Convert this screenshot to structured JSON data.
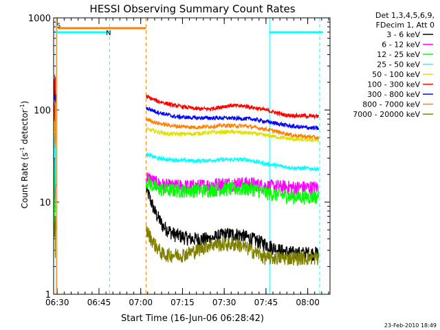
{
  "chart_data": {
    "type": "line",
    "title": "HESSI Observing Summary Count Rates",
    "xlabel": "Start Time (16-Jun-06 06:28:42)",
    "ylabel_main": "Count Rate (s",
    "ylabel_sup1": "-1",
    "ylabel_mid": " detector",
    "ylabel_sup2": "-1",
    "ylabel_end": ")",
    "y_scale": "log",
    "ylim": [
      1,
      1000
    ],
    "y_ticks": [
      "1",
      "10",
      "100",
      "1000"
    ],
    "x_ticks": [
      "06:30",
      "06:45",
      "07:00",
      "07:15",
      "07:30",
      "07:45",
      "08:00"
    ],
    "legend_header": [
      "Det 1,3,4,5,6,9,",
      "FDecim 1, Att 0"
    ],
    "timestamp": "23-Feb-2010 18:49",
    "flags": [
      {
        "label": "S",
        "color": "#ff8000"
      },
      {
        "label": "N",
        "color": "#00ffff"
      }
    ],
    "series": [
      {
        "name": "3 - 6 keV",
        "color": "#000000",
        "points": [
          [
            "07:02",
            14
          ],
          [
            "07:05",
            8
          ],
          [
            "07:08",
            5.5
          ],
          [
            "07:12",
            4.5
          ],
          [
            "07:18",
            4
          ],
          [
            "07:25",
            4
          ],
          [
            "07:30",
            4.5
          ],
          [
            "07:35",
            4.5
          ],
          [
            "07:40",
            4
          ],
          [
            "07:45",
            3.5
          ],
          [
            "07:50",
            3
          ],
          [
            "07:55",
            2.8
          ],
          [
            "08:00",
            2.8
          ],
          [
            "08:04",
            2.8
          ]
        ]
      },
      {
        "name": "6 - 12 keV",
        "color": "#ff00ff",
        "points": [
          [
            "07:02",
            19
          ],
          [
            "07:06",
            16
          ],
          [
            "07:10",
            15
          ],
          [
            "07:20",
            15
          ],
          [
            "07:30",
            16
          ],
          [
            "07:40",
            16
          ],
          [
            "07:45",
            15
          ],
          [
            "07:55",
            14.5
          ],
          [
            "08:04",
            14.5
          ]
        ]
      },
      {
        "name": "12 - 25 keV",
        "color": "#00ff00",
        "points": [
          [
            "07:02",
            17
          ],
          [
            "07:06",
            14
          ],
          [
            "07:10",
            13.5
          ],
          [
            "07:20",
            13.5
          ],
          [
            "07:30",
            14
          ],
          [
            "07:40",
            14
          ],
          [
            "07:46",
            12.5
          ],
          [
            "07:55",
            11.5
          ],
          [
            "08:04",
            11.5
          ]
        ]
      },
      {
        "name": "25 - 50 keV",
        "color": "#00ffff",
        "points": [
          [
            "07:02",
            33
          ],
          [
            "07:06",
            30
          ],
          [
            "07:10",
            29
          ],
          [
            "07:20",
            28
          ],
          [
            "07:30",
            29
          ],
          [
            "07:38",
            29
          ],
          [
            "07:45",
            26
          ],
          [
            "07:55",
            23.5
          ],
          [
            "08:04",
            23
          ]
        ]
      },
      {
        "name": "50 - 100 keV",
        "color": "#e0e000",
        "points": [
          [
            "07:02",
            62
          ],
          [
            "07:06",
            58
          ],
          [
            "07:10",
            55
          ],
          [
            "07:18",
            55
          ],
          [
            "07:25",
            57
          ],
          [
            "07:32",
            58
          ],
          [
            "07:40",
            56
          ],
          [
            "07:45",
            53
          ],
          [
            "07:55",
            48
          ],
          [
            "08:04",
            47
          ]
        ]
      },
      {
        "name": "100 - 300 keV",
        "color": "#ff0000",
        "points": [
          [
            "07:02",
            140
          ],
          [
            "07:06",
            125
          ],
          [
            "07:12",
            112
          ],
          [
            "07:20",
            103
          ],
          [
            "07:25",
            103
          ],
          [
            "07:32",
            112
          ],
          [
            "07:38",
            110
          ],
          [
            "07:45",
            100
          ],
          [
            "07:52",
            88
          ],
          [
            "08:04",
            85
          ]
        ]
      },
      {
        "name": "300 - 800 keV",
        "color": "#0000ff",
        "points": [
          [
            "07:02",
            105
          ],
          [
            "07:06",
            95
          ],
          [
            "07:12",
            85
          ],
          [
            "07:20",
            82
          ],
          [
            "07:30",
            82
          ],
          [
            "07:40",
            80
          ],
          [
            "07:45",
            75
          ],
          [
            "07:55",
            66
          ],
          [
            "08:04",
            63
          ]
        ]
      },
      {
        "name": "800 - 7000 keV",
        "color": "#ff8000",
        "points": [
          [
            "07:02",
            80
          ],
          [
            "07:06",
            72
          ],
          [
            "07:12",
            67
          ],
          [
            "07:20",
            65
          ],
          [
            "07:30",
            68
          ],
          [
            "07:38",
            67
          ],
          [
            "07:45",
            62
          ],
          [
            "07:55",
            53
          ],
          [
            "08:04",
            50
          ]
        ]
      },
      {
        "name": "7000 - 20000 keV",
        "color": "#808000",
        "points": [
          [
            "07:02",
            5
          ],
          [
            "07:05",
            3.5
          ],
          [
            "07:08",
            2.7
          ],
          [
            "07:15",
            2.7
          ],
          [
            "07:20",
            3
          ],
          [
            "07:25",
            3.5
          ],
          [
            "07:30",
            3.5
          ],
          [
            "07:35",
            3.5
          ],
          [
            "07:40",
            3
          ],
          [
            "07:45",
            2.5
          ],
          [
            "07:55",
            2.5
          ],
          [
            "08:04",
            2.5
          ]
        ]
      }
    ]
  }
}
